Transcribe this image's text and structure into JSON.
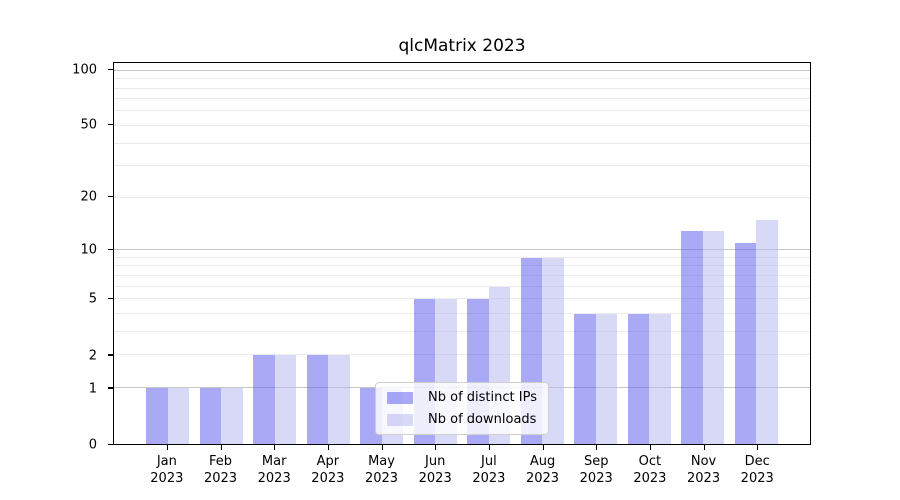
{
  "chart_data": {
    "type": "bar",
    "title": "qlcMatrix 2023",
    "categories": [
      "Jan 2023",
      "Feb 2023",
      "Mar 2023",
      "Apr 2023",
      "May 2023",
      "Jun 2023",
      "Jul 2023",
      "Aug 2023",
      "Sep 2023",
      "Oct 2023",
      "Nov 2023",
      "Dec 2023"
    ],
    "series": [
      {
        "name": "Nb of distinct IPs",
        "color": "rgba(84,84,238,0.5)",
        "values": [
          1,
          1,
          2,
          2,
          1,
          5,
          5,
          9,
          4,
          4,
          13,
          11
        ]
      },
      {
        "name": "Nb of downloads",
        "color": "rgba(178,178,240,0.5)",
        "values": [
          1,
          1,
          2,
          2,
          1,
          5,
          6,
          9,
          4,
          4,
          13,
          15
        ]
      }
    ],
    "yscale": "log1p",
    "yticks": [
      0,
      1,
      2,
      5,
      10,
      20,
      50,
      100
    ],
    "minor_gridlines": [
      2,
      3,
      4,
      5,
      6,
      7,
      8,
      9,
      20,
      30,
      40,
      50,
      60,
      70,
      80,
      90
    ],
    "major_gridlines": [
      1,
      10,
      100
    ],
    "ylim": [
      0,
      110
    ],
    "grid": true,
    "legend_position": "lower center",
    "colors": {
      "axis": "#000000",
      "grid_minor": "#ebebeb",
      "grid_major": "#c6c6c6"
    }
  }
}
